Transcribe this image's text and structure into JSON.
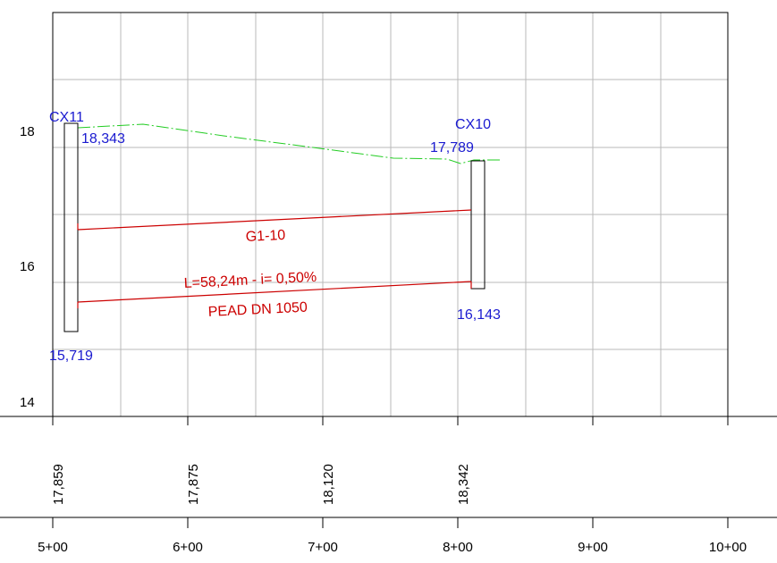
{
  "y_axis": {
    "ticks": [
      {
        "value": 14,
        "label": "14"
      },
      {
        "value": 16,
        "label": "16"
      },
      {
        "value": 18,
        "label": "18"
      }
    ]
  },
  "x_axis": {
    "stations": [
      "5+00",
      "6+00",
      "7+00",
      "8+00",
      "9+00",
      "10+00"
    ]
  },
  "terrain_values": [
    "17,859",
    "17,875",
    "18,120",
    "18,342"
  ],
  "manholes": {
    "left": {
      "name": "CX11",
      "top_elev": "18,343",
      "bottom_elev": "15,719"
    },
    "right": {
      "name": "CX10",
      "top_elev": "17,789",
      "bottom_elev": "16,143"
    }
  },
  "pipe": {
    "id": "G1-10",
    "length_slope": "L=58,24m  - i= 0,50%",
    "material": "PEAD DN 1050"
  },
  "colors": {
    "elevation_text": "#1a1ad0",
    "pipe": "#cc0000",
    "ground_line": "#22cc22",
    "grid": "#b8b8b8"
  }
}
